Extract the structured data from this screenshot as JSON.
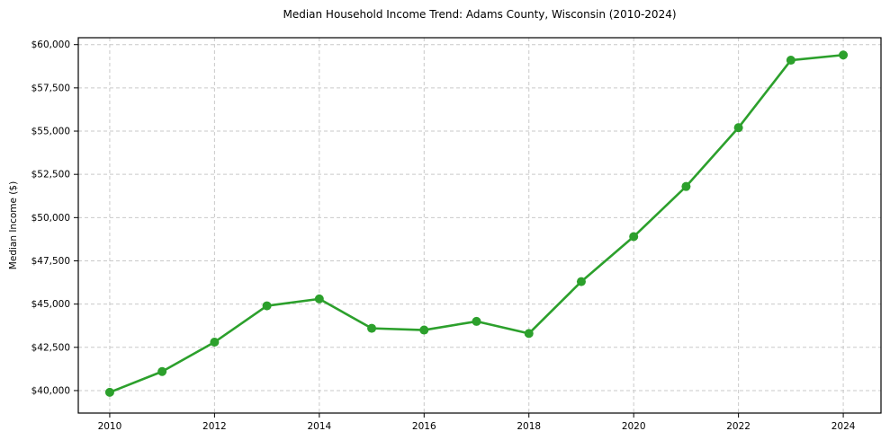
{
  "figure": {
    "title": "Median Household Income Trend: Adams County, Wisconsin (2010-2024)",
    "ylabel": "Median Income ($)"
  },
  "chart_data": {
    "type": "line",
    "title": "Median Household Income Trend: Adams County, Wisconsin (2010-2024)",
    "xlabel": "",
    "ylabel": "Median Income ($)",
    "x": [
      2010,
      2011,
      2012,
      2013,
      2014,
      2015,
      2016,
      2017,
      2018,
      2019,
      2020,
      2021,
      2022,
      2023,
      2024
    ],
    "values": [
      39900,
      41100,
      42800,
      44900,
      45300,
      43600,
      43500,
      44000,
      43300,
      46300,
      48900,
      51800,
      55200,
      59100,
      59400
    ],
    "series_name": "Median Household Income",
    "xlim": [
      2009.4,
      2024.72
    ],
    "ylim": [
      38700,
      60400
    ],
    "xticks": [
      2010,
      2012,
      2014,
      2016,
      2018,
      2020,
      2022,
      2024
    ],
    "xtick_labels": [
      "2010",
      "2012",
      "2014",
      "2016",
      "2018",
      "2020",
      "2022",
      "2024"
    ],
    "yticks": [
      40000,
      42500,
      45000,
      47500,
      50000,
      52500,
      55000,
      57500,
      60000
    ],
    "ytick_labels": [
      "$40,000",
      "$42,500",
      "$45,000",
      "$47,500",
      "$50,000",
      "$52,500",
      "$55,000",
      "$57,500",
      "$60,000"
    ],
    "grid": true,
    "legend": "none",
    "colors": {
      "line": "#2ca02c",
      "marker": "#2ca02c",
      "grid": "#c9c9c9",
      "spine": "#000000",
      "text": "#000000",
      "background": "#ffffff"
    }
  }
}
